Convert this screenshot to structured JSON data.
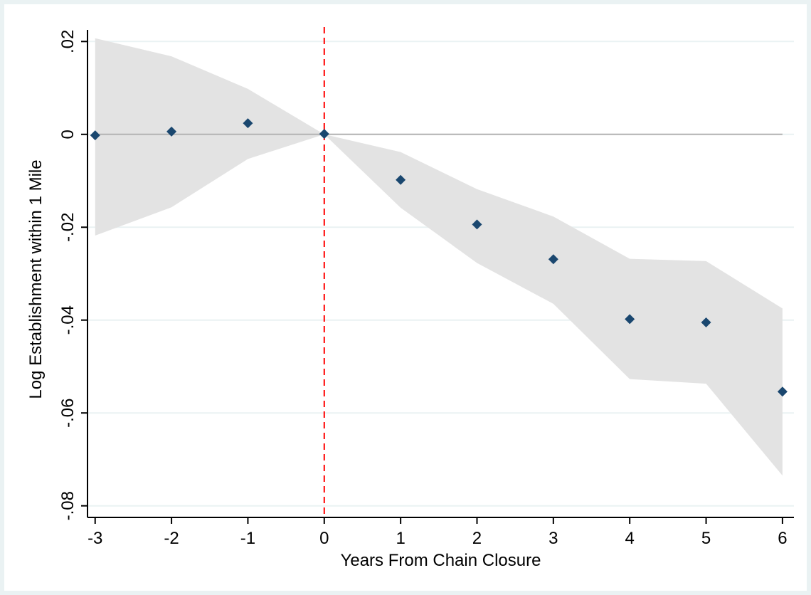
{
  "chart_data": {
    "type": "scatter",
    "title": "",
    "xlabel": "Years From Chain Closure",
    "ylabel": "Log Establishment within 1 Mile",
    "xlim": [
      -3.1,
      6.15
    ],
    "ylim": [
      -0.0825,
      0.0225
    ],
    "x_ticks": [
      -3,
      -2,
      -1,
      0,
      1,
      2,
      3,
      4,
      5,
      6
    ],
    "x_tick_labels": [
      "-3",
      "-2",
      "-1",
      "0",
      "1",
      "2",
      "3",
      "4",
      "5",
      "6"
    ],
    "y_ticks": [
      0.02,
      0,
      -0.02,
      -0.04,
      -0.06,
      -0.08
    ],
    "y_tick_labels": [
      ".02",
      "0",
      "-.02",
      "-.04",
      "-.06",
      "-.08"
    ],
    "grid": "horizontal",
    "legend": "none",
    "reference_lines": {
      "y": 0,
      "x": 0,
      "x_style": "dashed"
    },
    "series": [
      {
        "x": [
          -3,
          -2,
          -1,
          0,
          1,
          2,
          3,
          4,
          5,
          6
        ],
        "y": [
          -0.0002,
          0.0006,
          0.0024,
          0.0001,
          -0.0098,
          -0.0194,
          -0.0269,
          -0.0398,
          -0.0405,
          -0.0554
        ],
        "ci_lower": [
          -0.0218,
          -0.0157,
          -0.0053,
          0.0,
          -0.0158,
          -0.0277,
          -0.0365,
          -0.0527,
          -0.0537,
          -0.0735
        ],
        "ci_upper": [
          0.0207,
          0.0168,
          0.0098,
          0.0,
          -0.0038,
          -0.0118,
          -0.0177,
          -0.0268,
          -0.0273,
          -0.0375
        ]
      }
    ],
    "colors": {
      "marker": "#1a476f",
      "ci_band": "#e3e3e3",
      "zero_line": "#b3b3b3",
      "gridline": "#eaf2f3",
      "vline": "#ff0000",
      "background_outer": "#eaf2f3"
    }
  }
}
